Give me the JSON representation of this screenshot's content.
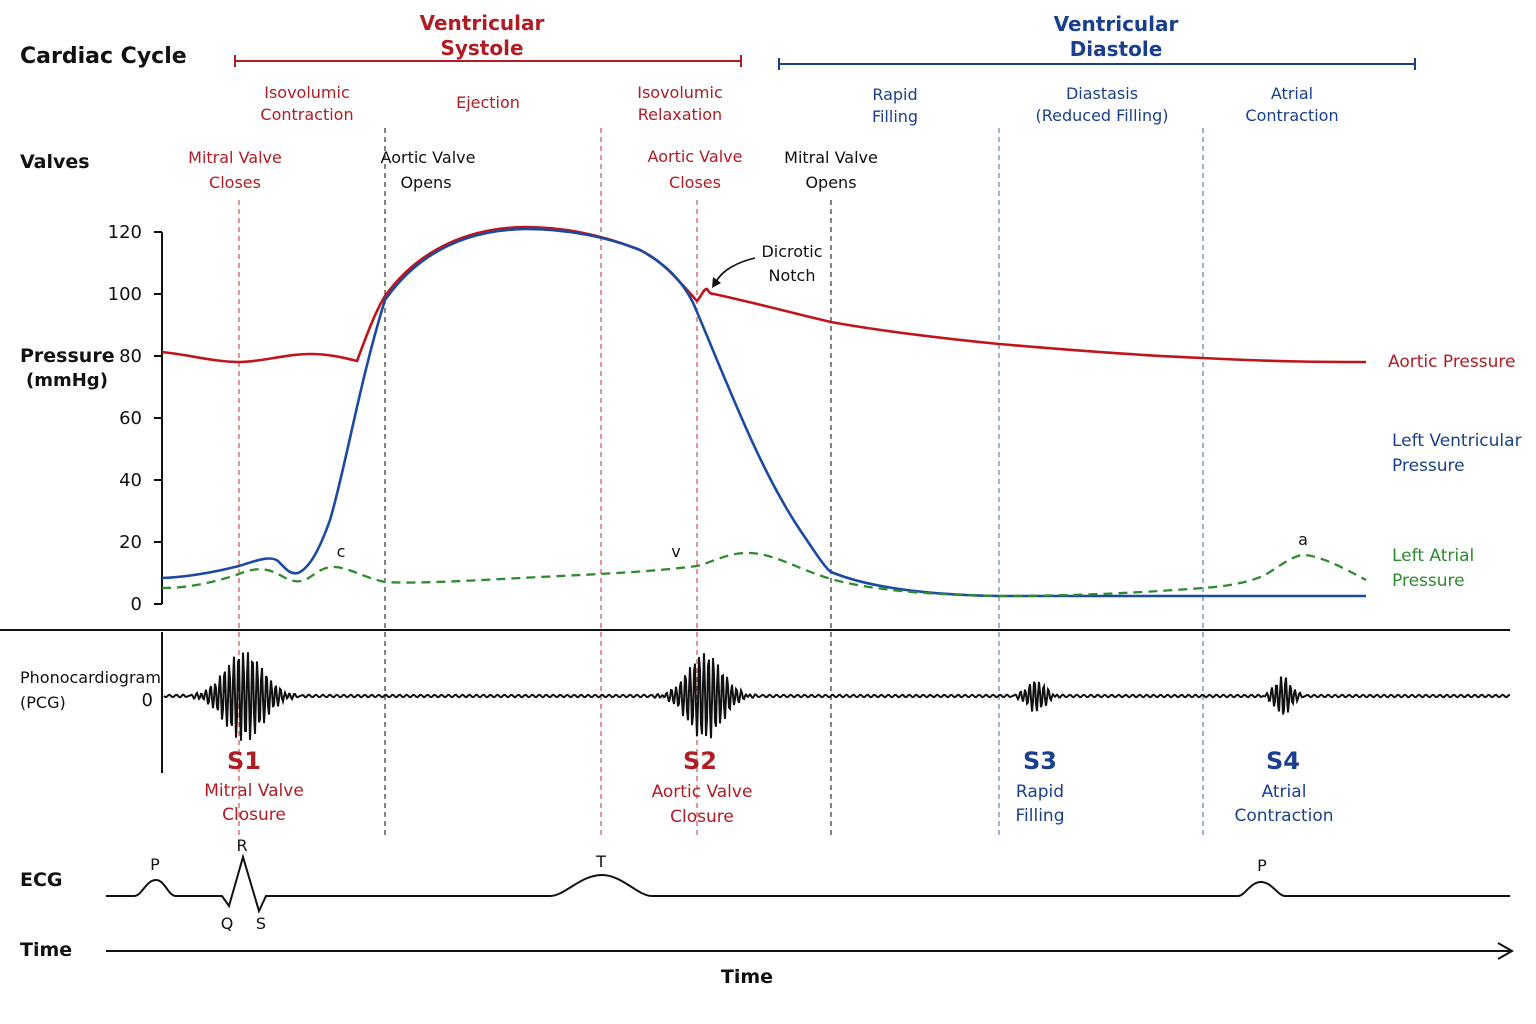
{
  "title": "Cardiac Cycle",
  "phases": {
    "systole": {
      "line1": "Ventricular",
      "line2": "Systole"
    },
    "diastole": {
      "line1": "Ventricular",
      "line2": "Diastole"
    }
  },
  "subphases": [
    {
      "line1": "Isovolumic",
      "line2": "Contraction"
    },
    {
      "line1": "Ejection",
      "line2": ""
    },
    {
      "line1": "Isovolumic",
      "line2": "Relaxation"
    },
    {
      "line1": "Rapid",
      "line2": "Filling"
    },
    {
      "line1": "Diastasis",
      "line2": "(Reduced Filling)"
    },
    {
      "line1": "Atrial",
      "line2": "Contraction"
    }
  ],
  "row_labels": {
    "valves": "Valves",
    "pressure": "Pressure",
    "pressure_unit": "(mmHg)",
    "pcg": "Phonocardiogram",
    "pcg_abbr": "(PCG)",
    "ecg": "ECG",
    "time": "Time"
  },
  "valve_events": [
    {
      "line1": "Mitral Valve",
      "line2": "Closes"
    },
    {
      "line1": "Aortic Valve",
      "line2": "Opens"
    },
    {
      "line1": "Aortic Valve",
      "line2": "Closes"
    },
    {
      "line1": "Mitral Valve",
      "line2": "Opens"
    }
  ],
  "pressure_axis": {
    "ticks": [
      "0",
      "20",
      "40",
      "60",
      "80",
      "100",
      "120"
    ],
    "range": [
      0,
      120
    ]
  },
  "pcg_axis": {
    "zero": "0"
  },
  "curve_labels": {
    "aortic": "Aortic Pressure",
    "lv_line1": "Left Ventricular",
    "lv_line2": "Pressure",
    "la_line1": "Left Atrial",
    "la_line2": "Pressure"
  },
  "annotations": {
    "notch_line1": "Dicrotic",
    "notch_line2": "Notch",
    "c_wave": "c",
    "v_wave": "v",
    "a_wave": "a"
  },
  "heart_sounds": [
    {
      "name": "S1",
      "line1": "Mitral Valve",
      "line2": "Closure"
    },
    {
      "name": "S2",
      "line1": "Aortic Valve",
      "line2": "Closure"
    },
    {
      "name": "S3",
      "line1": "Rapid",
      "line2": "Filling"
    },
    {
      "name": "S4",
      "line1": "Atrial",
      "line2": "Contraction"
    }
  ],
  "ecg_labels": {
    "p1": "P",
    "r": "R",
    "q": "Q",
    "s": "S",
    "t": "T",
    "p2": "P"
  },
  "time_axis_label": "Time",
  "colors": {
    "systole": "#b01c24",
    "diastole": "#1b3f8f",
    "aortic": "#c0141c",
    "lv": "#1b4aa0",
    "la": "#2e8b2e",
    "ink": "#111111"
  }
}
